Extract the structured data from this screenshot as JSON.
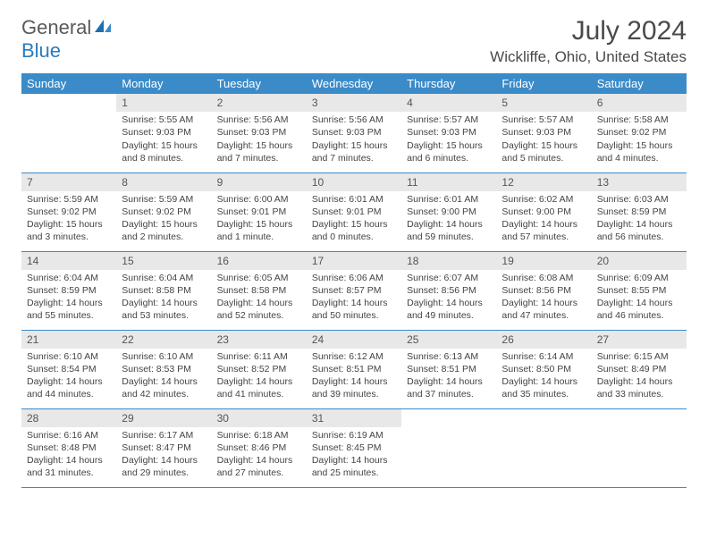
{
  "logo": {
    "part1": "General",
    "part2": "Blue"
  },
  "title": "July 2024",
  "location": "Wickliffe, Ohio, United States",
  "colors": {
    "header_bg": "#3b8bc9",
    "header_text": "#ffffff",
    "daynum_bg": "#e8e8e8",
    "border": "#3b8bc9",
    "text": "#444444",
    "logo_gray": "#5a5a5a",
    "logo_blue": "#2a7bbf"
  },
  "typography": {
    "title_fontsize": 30,
    "location_fontsize": 17,
    "header_fontsize": 13,
    "cell_fontsize": 10.5
  },
  "weekdays": [
    "Sunday",
    "Monday",
    "Tuesday",
    "Wednesday",
    "Thursday",
    "Friday",
    "Saturday"
  ],
  "weeks": [
    [
      {
        "day": "",
        "sunrise": "",
        "sunset": "",
        "daylight": ""
      },
      {
        "day": "1",
        "sunrise": "Sunrise: 5:55 AM",
        "sunset": "Sunset: 9:03 PM",
        "daylight": "Daylight: 15 hours and 8 minutes."
      },
      {
        "day": "2",
        "sunrise": "Sunrise: 5:56 AM",
        "sunset": "Sunset: 9:03 PM",
        "daylight": "Daylight: 15 hours and 7 minutes."
      },
      {
        "day": "3",
        "sunrise": "Sunrise: 5:56 AM",
        "sunset": "Sunset: 9:03 PM",
        "daylight": "Daylight: 15 hours and 7 minutes."
      },
      {
        "day": "4",
        "sunrise": "Sunrise: 5:57 AM",
        "sunset": "Sunset: 9:03 PM",
        "daylight": "Daylight: 15 hours and 6 minutes."
      },
      {
        "day": "5",
        "sunrise": "Sunrise: 5:57 AM",
        "sunset": "Sunset: 9:03 PM",
        "daylight": "Daylight: 15 hours and 5 minutes."
      },
      {
        "day": "6",
        "sunrise": "Sunrise: 5:58 AM",
        "sunset": "Sunset: 9:02 PM",
        "daylight": "Daylight: 15 hours and 4 minutes."
      }
    ],
    [
      {
        "day": "7",
        "sunrise": "Sunrise: 5:59 AM",
        "sunset": "Sunset: 9:02 PM",
        "daylight": "Daylight: 15 hours and 3 minutes."
      },
      {
        "day": "8",
        "sunrise": "Sunrise: 5:59 AM",
        "sunset": "Sunset: 9:02 PM",
        "daylight": "Daylight: 15 hours and 2 minutes."
      },
      {
        "day": "9",
        "sunrise": "Sunrise: 6:00 AM",
        "sunset": "Sunset: 9:01 PM",
        "daylight": "Daylight: 15 hours and 1 minute."
      },
      {
        "day": "10",
        "sunrise": "Sunrise: 6:01 AM",
        "sunset": "Sunset: 9:01 PM",
        "daylight": "Daylight: 15 hours and 0 minutes."
      },
      {
        "day": "11",
        "sunrise": "Sunrise: 6:01 AM",
        "sunset": "Sunset: 9:00 PM",
        "daylight": "Daylight: 14 hours and 59 minutes."
      },
      {
        "day": "12",
        "sunrise": "Sunrise: 6:02 AM",
        "sunset": "Sunset: 9:00 PM",
        "daylight": "Daylight: 14 hours and 57 minutes."
      },
      {
        "day": "13",
        "sunrise": "Sunrise: 6:03 AM",
        "sunset": "Sunset: 8:59 PM",
        "daylight": "Daylight: 14 hours and 56 minutes."
      }
    ],
    [
      {
        "day": "14",
        "sunrise": "Sunrise: 6:04 AM",
        "sunset": "Sunset: 8:59 PM",
        "daylight": "Daylight: 14 hours and 55 minutes."
      },
      {
        "day": "15",
        "sunrise": "Sunrise: 6:04 AM",
        "sunset": "Sunset: 8:58 PM",
        "daylight": "Daylight: 14 hours and 53 minutes."
      },
      {
        "day": "16",
        "sunrise": "Sunrise: 6:05 AM",
        "sunset": "Sunset: 8:58 PM",
        "daylight": "Daylight: 14 hours and 52 minutes."
      },
      {
        "day": "17",
        "sunrise": "Sunrise: 6:06 AM",
        "sunset": "Sunset: 8:57 PM",
        "daylight": "Daylight: 14 hours and 50 minutes."
      },
      {
        "day": "18",
        "sunrise": "Sunrise: 6:07 AM",
        "sunset": "Sunset: 8:56 PM",
        "daylight": "Daylight: 14 hours and 49 minutes."
      },
      {
        "day": "19",
        "sunrise": "Sunrise: 6:08 AM",
        "sunset": "Sunset: 8:56 PM",
        "daylight": "Daylight: 14 hours and 47 minutes."
      },
      {
        "day": "20",
        "sunrise": "Sunrise: 6:09 AM",
        "sunset": "Sunset: 8:55 PM",
        "daylight": "Daylight: 14 hours and 46 minutes."
      }
    ],
    [
      {
        "day": "21",
        "sunrise": "Sunrise: 6:10 AM",
        "sunset": "Sunset: 8:54 PM",
        "daylight": "Daylight: 14 hours and 44 minutes."
      },
      {
        "day": "22",
        "sunrise": "Sunrise: 6:10 AM",
        "sunset": "Sunset: 8:53 PM",
        "daylight": "Daylight: 14 hours and 42 minutes."
      },
      {
        "day": "23",
        "sunrise": "Sunrise: 6:11 AM",
        "sunset": "Sunset: 8:52 PM",
        "daylight": "Daylight: 14 hours and 41 minutes."
      },
      {
        "day": "24",
        "sunrise": "Sunrise: 6:12 AM",
        "sunset": "Sunset: 8:51 PM",
        "daylight": "Daylight: 14 hours and 39 minutes."
      },
      {
        "day": "25",
        "sunrise": "Sunrise: 6:13 AM",
        "sunset": "Sunset: 8:51 PM",
        "daylight": "Daylight: 14 hours and 37 minutes."
      },
      {
        "day": "26",
        "sunrise": "Sunrise: 6:14 AM",
        "sunset": "Sunset: 8:50 PM",
        "daylight": "Daylight: 14 hours and 35 minutes."
      },
      {
        "day": "27",
        "sunrise": "Sunrise: 6:15 AM",
        "sunset": "Sunset: 8:49 PM",
        "daylight": "Daylight: 14 hours and 33 minutes."
      }
    ],
    [
      {
        "day": "28",
        "sunrise": "Sunrise: 6:16 AM",
        "sunset": "Sunset: 8:48 PM",
        "daylight": "Daylight: 14 hours and 31 minutes."
      },
      {
        "day": "29",
        "sunrise": "Sunrise: 6:17 AM",
        "sunset": "Sunset: 8:47 PM",
        "daylight": "Daylight: 14 hours and 29 minutes."
      },
      {
        "day": "30",
        "sunrise": "Sunrise: 6:18 AM",
        "sunset": "Sunset: 8:46 PM",
        "daylight": "Daylight: 14 hours and 27 minutes."
      },
      {
        "day": "31",
        "sunrise": "Sunrise: 6:19 AM",
        "sunset": "Sunset: 8:45 PM",
        "daylight": "Daylight: 14 hours and 25 minutes."
      },
      {
        "day": "",
        "sunrise": "",
        "sunset": "",
        "daylight": ""
      },
      {
        "day": "",
        "sunrise": "",
        "sunset": "",
        "daylight": ""
      },
      {
        "day": "",
        "sunrise": "",
        "sunset": "",
        "daylight": ""
      }
    ]
  ]
}
